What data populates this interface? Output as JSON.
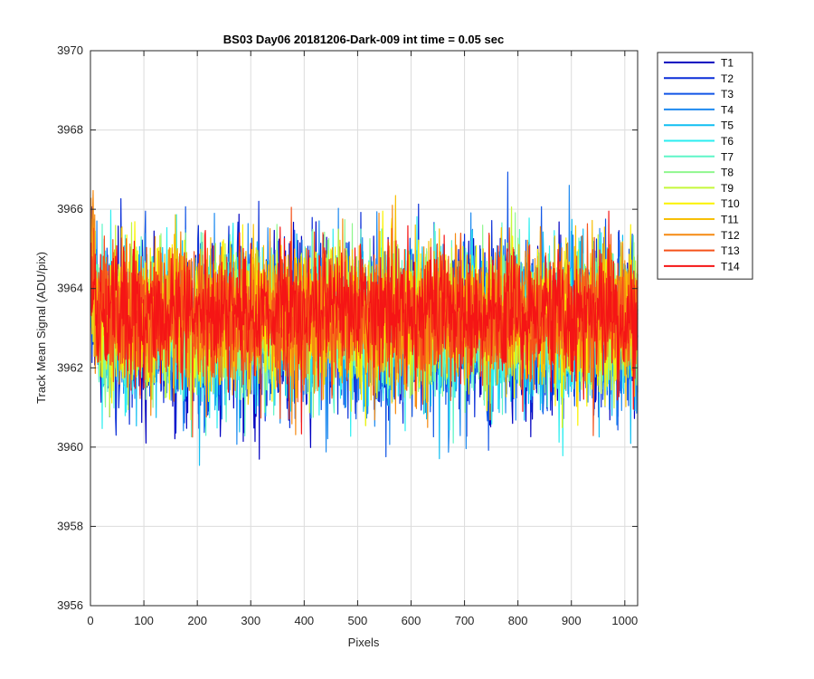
{
  "chart_data": {
    "type": "line",
    "title": "BS03 Day06 20181206-Dark-009 int time = 0.05 sec",
    "xlabel": "Pixels",
    "ylabel": "Track Mean Signal (ADU/pix)",
    "xlim": [
      0,
      1024
    ],
    "ylim": [
      3956,
      3970
    ],
    "xticks": [
      0,
      100,
      200,
      300,
      400,
      500,
      600,
      700,
      800,
      900,
      1000
    ],
    "yticks": [
      3956,
      3958,
      3960,
      3962,
      3964,
      3966,
      3968,
      3970
    ],
    "grid": true,
    "legend_position": "outside-top-right",
    "n_points": 1024,
    "series": [
      {
        "name": "T1",
        "color": "#0000c0",
        "mean": 3963.0,
        "std": 1.05
      },
      {
        "name": "T2",
        "color": "#0a2ed8",
        "mean": 3963.0,
        "std": 1.05
      },
      {
        "name": "T3",
        "color": "#1155e6",
        "mean": 3963.0,
        "std": 1.0
      },
      {
        "name": "T4",
        "color": "#1e8af0",
        "mean": 3963.0,
        "std": 1.0
      },
      {
        "name": "T5",
        "color": "#11bff2",
        "mean": 3963.1,
        "std": 0.95
      },
      {
        "name": "T6",
        "color": "#2aeef0",
        "mean": 3963.1,
        "std": 0.95
      },
      {
        "name": "T7",
        "color": "#5ff6c8",
        "mean": 3963.1,
        "std": 0.9
      },
      {
        "name": "T8",
        "color": "#8ff78e",
        "mean": 3963.2,
        "std": 0.9
      },
      {
        "name": "T9",
        "color": "#c5f83a",
        "mean": 3963.2,
        "std": 0.9
      },
      {
        "name": "T10",
        "color": "#fbf200",
        "mean": 3963.2,
        "std": 0.9
      },
      {
        "name": "T11",
        "color": "#f7bf06",
        "mean": 3963.3,
        "std": 0.85
      },
      {
        "name": "T12",
        "color": "#f68a12",
        "mean": 3963.3,
        "std": 0.85
      },
      {
        "name": "T13",
        "color": "#f5521a",
        "mean": 3963.3,
        "std": 0.85
      },
      {
        "name": "T14",
        "color": "#f51515",
        "mean": 3963.4,
        "std": 0.8
      }
    ]
  }
}
